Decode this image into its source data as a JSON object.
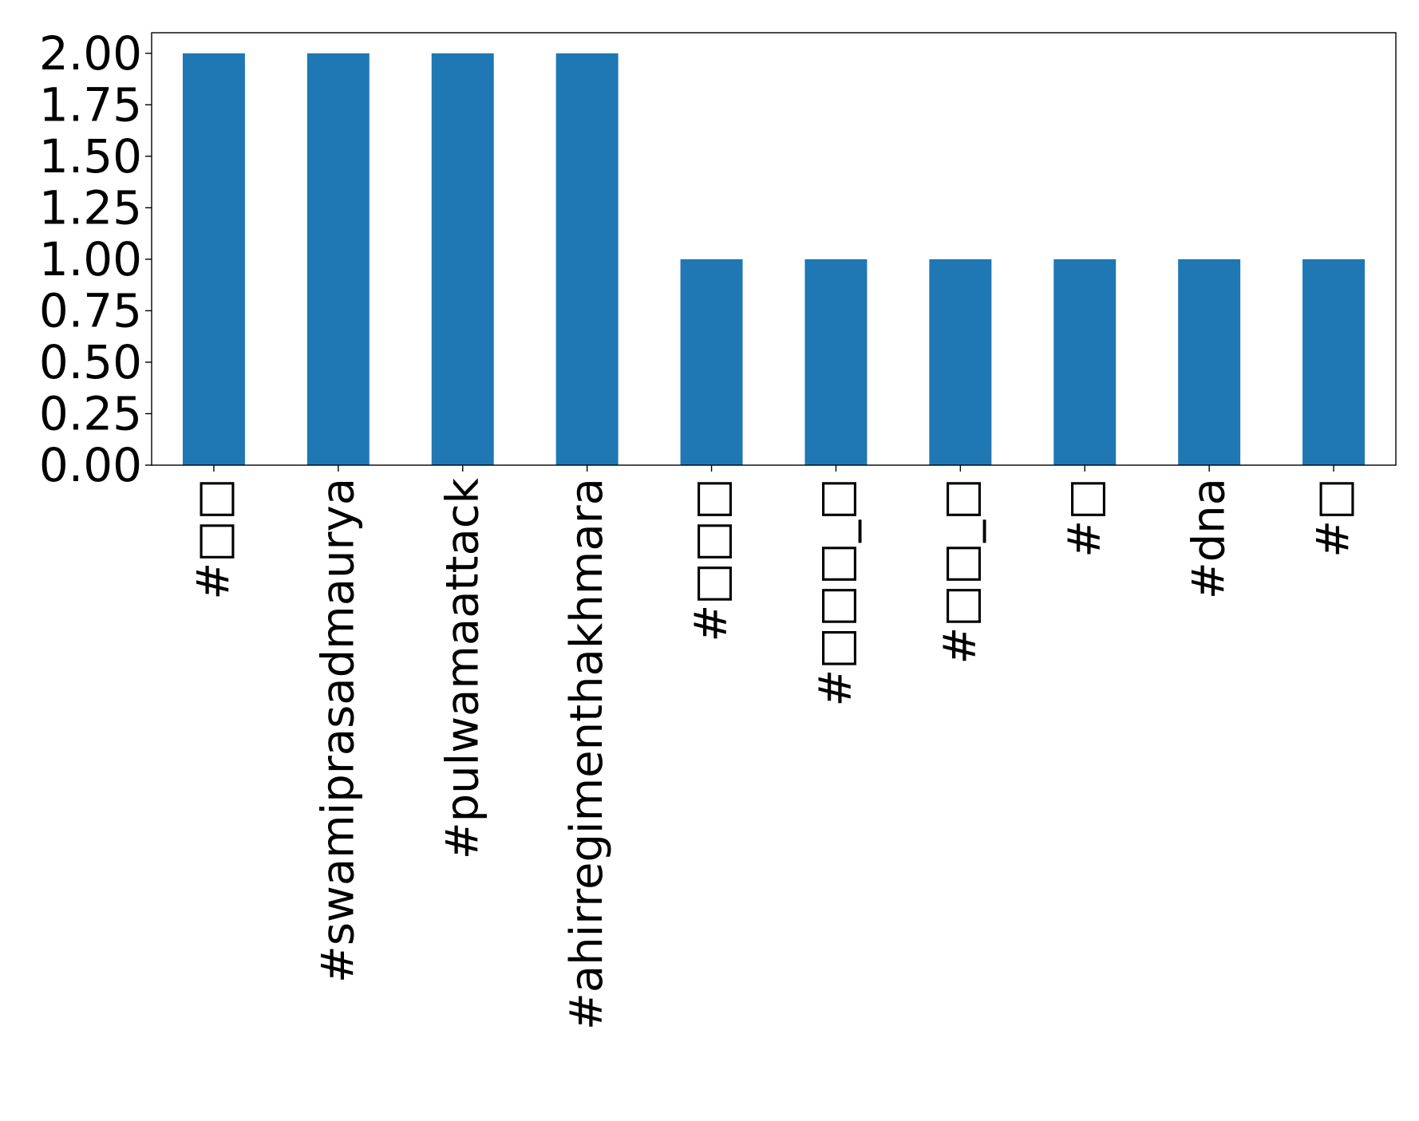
{
  "chart_data": {
    "type": "bar",
    "title": "",
    "xlabel": "",
    "ylabel": "",
    "categories": [
      "#□□",
      "#swamiprasadmaurya",
      "#pulwamaattack",
      "#ahirregimenthakhmara",
      "#□□□",
      "#□□□_□",
      "#□□_□",
      "#□",
      "#dna",
      "#□"
    ],
    "values": [
      2,
      2,
      2,
      2,
      1,
      1,
      1,
      1,
      1,
      1
    ],
    "ylim": [
      0,
      2.1
    ],
    "yticks": [
      "0.00",
      "0.25",
      "0.50",
      "0.75",
      "1.00",
      "1.25",
      "1.50",
      "1.75",
      "2.00"
    ],
    "grid": false,
    "legend": "none",
    "bar_color": "#1f77b4",
    "tick_label_rotation": "vertical"
  }
}
